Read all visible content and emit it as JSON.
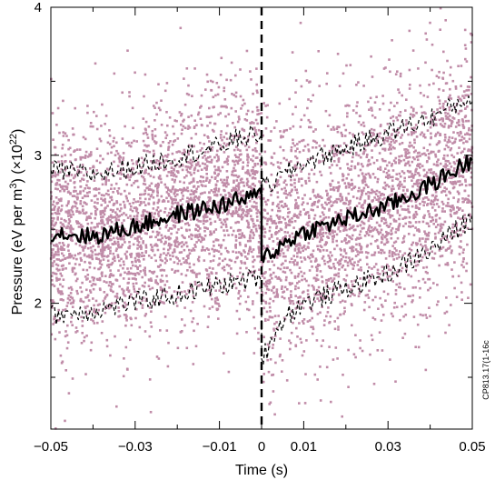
{
  "chart_data": {
    "type": "scatter",
    "title": "",
    "xlabel": "Time (s)",
    "ylabel_parts": {
      "prefix": "Pressure (eV per m",
      "exp1": "3",
      "middle": ") (×10",
      "exp2": "22",
      "suffix": ")"
    },
    "xlim": [
      -0.05,
      0.05
    ],
    "ylim": [
      1.15,
      4.0
    ],
    "x_ticks": [
      {
        "value": -0.05,
        "label": "−0.05"
      },
      {
        "value": -0.03,
        "label": "−0.03"
      },
      {
        "value": -0.01,
        "label": "−0.01"
      },
      {
        "value": 0,
        "label": "0"
      },
      {
        "value": 0.01,
        "label": "0.01"
      },
      {
        "value": 0.03,
        "label": "0.03"
      },
      {
        "value": 0.05,
        "label": "0.05"
      }
    ],
    "x_minor_ticks": [
      -0.04,
      -0.02,
      0.02,
      0.04
    ],
    "y_ticks": [
      {
        "value": 2,
        "label": "2"
      },
      {
        "value": 3,
        "label": "3"
      },
      {
        "value": 4,
        "label": "4"
      }
    ],
    "y_minor_ticks": [
      1.5,
      2.5,
      3.5
    ],
    "grid": false,
    "legend": "none",
    "annotations": [
      {
        "type": "vline",
        "x": 0,
        "style": "dashed",
        "color": "#000000"
      }
    ],
    "side_note": "CP813.17(1-16c",
    "colors": {
      "scatter": "#c08ca8",
      "lines": "#000000"
    },
    "series": [
      {
        "role": "scatter",
        "distribution": "random samples around the mean trace",
        "count": 5200,
        "seed": 12345,
        "spread_pre": 0.38,
        "spread_post": 0.4
      },
      {
        "role": "mean",
        "style": "solid-thick",
        "x": [
          -0.05,
          -0.04,
          -0.03,
          -0.02,
          -0.01,
          -0.005,
          0,
          0.0001,
          0.003,
          0.006,
          0.01,
          0.02,
          0.03,
          0.04,
          0.05
        ],
        "y": [
          2.48,
          2.45,
          2.52,
          2.6,
          2.66,
          2.7,
          2.73,
          2.33,
          2.35,
          2.42,
          2.48,
          2.57,
          2.66,
          2.8,
          2.97
        ]
      },
      {
        "role": "upper",
        "style": "dashed",
        "x": [
          -0.05,
          -0.04,
          -0.03,
          -0.02,
          -0.01,
          -0.005,
          0,
          0.0001,
          0.003,
          0.006,
          0.01,
          0.02,
          0.03,
          0.04,
          0.05
        ],
        "y": [
          2.9,
          2.87,
          2.92,
          2.99,
          3.06,
          3.12,
          3.15,
          2.78,
          2.82,
          2.88,
          2.95,
          3.05,
          3.15,
          3.25,
          3.4
        ]
      },
      {
        "role": "lower",
        "style": "dashed",
        "x": [
          -0.05,
          -0.04,
          -0.03,
          -0.02,
          -0.01,
          -0.005,
          0,
          0.0001,
          0.003,
          0.006,
          0.01,
          0.02,
          0.03,
          0.04,
          0.05
        ],
        "y": [
          1.92,
          1.95,
          2.01,
          2.06,
          2.12,
          2.15,
          2.18,
          1.62,
          1.8,
          1.92,
          2.0,
          2.1,
          2.2,
          2.36,
          2.58
        ]
      }
    ]
  }
}
